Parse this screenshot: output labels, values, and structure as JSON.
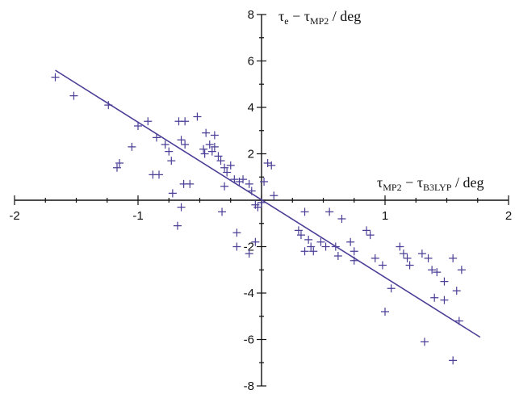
{
  "chart_data": {
    "type": "scatter",
    "xlabel": {
      "main": "τ",
      "sub1": "MP2",
      "mid": " − τ",
      "sub2": "B3LYP",
      "tail": " / deg"
    },
    "ylabel": {
      "main": "τ",
      "sub1": "e",
      "mid": " − τ",
      "sub2": "MP2",
      "tail": " / deg"
    },
    "xlim": [
      -2,
      2
    ],
    "ylim": [
      -8,
      8
    ],
    "x_ticks": [
      -2,
      -1,
      0,
      1,
      2
    ],
    "y_ticks": [
      -8,
      -6,
      -4,
      -2,
      2,
      4,
      6,
      8
    ],
    "marker": "+",
    "series_color": "#4a3e96",
    "line_color": "#4a3e96",
    "points": [
      [
        -1.67,
        5.3
      ],
      [
        -1.52,
        4.5
      ],
      [
        -1.24,
        4.1
      ],
      [
        -1.17,
        1.4
      ],
      [
        -1.15,
        1.6
      ],
      [
        -1.05,
        2.3
      ],
      [
        -1.0,
        3.2
      ],
      [
        -0.92,
        3.4
      ],
      [
        -0.88,
        1.1
      ],
      [
        -0.83,
        1.1
      ],
      [
        -0.85,
        2.7
      ],
      [
        -0.78,
        2.4
      ],
      [
        -0.75,
        2.1
      ],
      [
        -0.73,
        1.7
      ],
      [
        -0.72,
        0.3
      ],
      [
        -0.67,
        3.4
      ],
      [
        -0.65,
        2.6
      ],
      [
        -0.62,
        2.4
      ],
      [
        -0.62,
        3.4
      ],
      [
        -0.65,
        -0.3
      ],
      [
        -0.68,
        -1.1
      ],
      [
        -0.63,
        0.7
      ],
      [
        -0.58,
        0.7
      ],
      [
        -0.52,
        3.6
      ],
      [
        -0.47,
        2.2
      ],
      [
        -0.46,
        2.0
      ],
      [
        -0.45,
        2.9
      ],
      [
        -0.42,
        2.4
      ],
      [
        -0.4,
        2.1
      ],
      [
        -0.38,
        2.3
      ],
      [
        -0.38,
        2.8
      ],
      [
        -0.35,
        1.9
      ],
      [
        -0.33,
        1.7
      ],
      [
        -0.3,
        1.4
      ],
      [
        -0.3,
        0.6
      ],
      [
        -0.32,
        -0.5
      ],
      [
        -0.28,
        1.2
      ],
      [
        -0.25,
        1.5
      ],
      [
        -0.22,
        0.9
      ],
      [
        -0.2,
        -1.4
      ],
      [
        -0.2,
        -2.0
      ],
      [
        -0.18,
        0.8
      ],
      [
        -0.15,
        0.9
      ],
      [
        -0.1,
        0.7
      ],
      [
        -0.08,
        0.4
      ],
      [
        -0.05,
        -0.2
      ],
      [
        -0.03,
        -0.3
      ],
      [
        0.0,
        -0.1
      ],
      [
        0.02,
        0.8
      ],
      [
        -0.1,
        -2.3
      ],
      [
        0.05,
        1.6
      ],
      [
        0.08,
        1.5
      ],
      [
        0.1,
        0.2
      ],
      [
        -0.05,
        -1.8
      ],
      [
        0.3,
        -1.3
      ],
      [
        0.32,
        -1.5
      ],
      [
        0.35,
        -0.5
      ],
      [
        0.35,
        -2.2
      ],
      [
        0.38,
        -1.7
      ],
      [
        0.4,
        -2.0
      ],
      [
        0.42,
        -2.2
      ],
      [
        0.48,
        -1.8
      ],
      [
        0.52,
        -2.0
      ],
      [
        0.55,
        -0.5
      ],
      [
        0.6,
        -2.0
      ],
      [
        0.62,
        -2.4
      ],
      [
        0.65,
        -0.8
      ],
      [
        0.72,
        -1.8
      ],
      [
        0.75,
        -2.6
      ],
      [
        0.75,
        -2.2
      ],
      [
        0.85,
        -1.3
      ],
      [
        0.88,
        -1.5
      ],
      [
        0.92,
        -2.5
      ],
      [
        0.98,
        -2.8
      ],
      [
        1.0,
        -4.8
      ],
      [
        1.05,
        -3.8
      ],
      [
        1.12,
        -2.0
      ],
      [
        1.15,
        -2.3
      ],
      [
        1.18,
        -2.5
      ],
      [
        1.2,
        -2.8
      ],
      [
        1.3,
        -2.3
      ],
      [
        1.32,
        -6.1
      ],
      [
        1.35,
        -2.5
      ],
      [
        1.38,
        -3.0
      ],
      [
        1.4,
        -4.2
      ],
      [
        1.42,
        -3.1
      ],
      [
        1.48,
        -3.5
      ],
      [
        1.48,
        -4.3
      ],
      [
        1.55,
        -2.5
      ],
      [
        1.58,
        -3.9
      ],
      [
        1.62,
        -3.0
      ],
      [
        1.55,
        -6.9
      ],
      [
        1.6,
        -5.2
      ]
    ],
    "fit_line": {
      "x": [
        -1.67,
        1.77
      ],
      "y": [
        5.6,
        -5.9
      ]
    }
  }
}
